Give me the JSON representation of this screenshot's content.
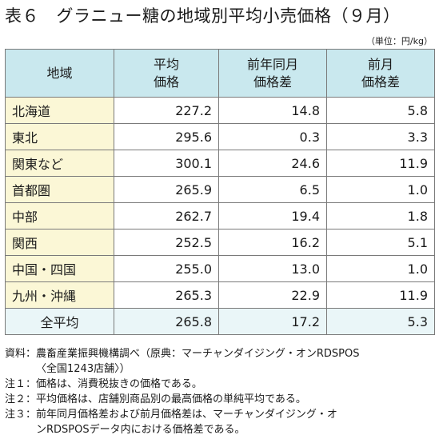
{
  "title": "表６　グラニュー糖の地域別平均小売価格（９月）",
  "unit": "（単位：円/kg）",
  "table": {
    "headers": [
      [
        "地域"
      ],
      [
        "平均",
        "価格"
      ],
      [
        "前年同月",
        "価格差"
      ],
      [
        "前月",
        "価格差"
      ]
    ],
    "rows": [
      {
        "region": "北海道",
        "price": "227.2",
        "yoy": "14.8",
        "mom": "5.8"
      },
      {
        "region": "東北",
        "price": "295.6",
        "yoy": "0.3",
        "mom": "3.3"
      },
      {
        "region": "関東など",
        "price": "300.1",
        "yoy": "24.6",
        "mom": "11.9"
      },
      {
        "region": "首都圏",
        "price": "265.9",
        "yoy": "6.5",
        "mom": "1.0"
      },
      {
        "region": "中部",
        "price": "262.7",
        "yoy": "19.4",
        "mom": "1.8"
      },
      {
        "region": "関西",
        "price": "252.5",
        "yoy": "16.2",
        "mom": "5.1"
      },
      {
        "region": "中国・四国",
        "price": "255.0",
        "yoy": "13.0",
        "mom": "1.0"
      },
      {
        "region": "九州・沖縄",
        "price": "265.3",
        "yoy": "22.9",
        "mom": "11.9"
      }
    ],
    "total": {
      "region": "全平均",
      "price": "265.8",
      "yoy": "17.2",
      "mom": "5.3"
    }
  },
  "notes": [
    {
      "label": "資料：",
      "lines": [
        "農畜産業振興機構調べ（原典：マーチャンダイジング・オンRDSPOS",
        "〈全国1243店舗〉）"
      ]
    },
    {
      "label": "注１：",
      "lines": [
        "価格は、消費税抜きの価格である。"
      ]
    },
    {
      "label": "注２：",
      "lines": [
        "平均価格は、店舗別商品別の最高価格の単純平均である。"
      ]
    },
    {
      "label": "注３：",
      "lines": [
        "前年同月価格差および前月価格差は、マーチャンダイジング・オ",
        "ンRDSPOSデータ内における価格差である。"
      ]
    }
  ],
  "colors": {
    "header_bg": "#c9e8ee",
    "region_bg": "#fbf7d6",
    "total_bg": "#eaf6f8"
  }
}
